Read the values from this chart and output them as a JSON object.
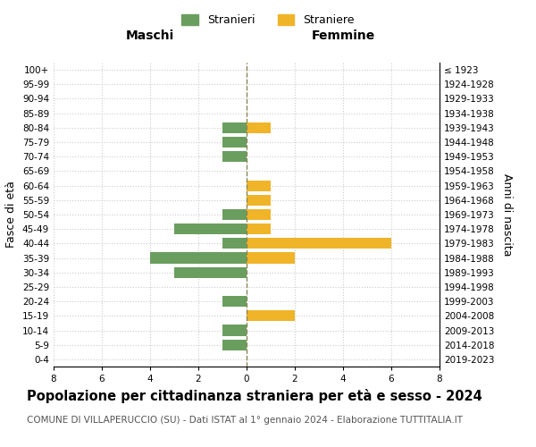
{
  "age_groups": [
    "0-4",
    "5-9",
    "10-14",
    "15-19",
    "20-24",
    "25-29",
    "30-34",
    "35-39",
    "40-44",
    "45-49",
    "50-54",
    "55-59",
    "60-64",
    "65-69",
    "70-74",
    "75-79",
    "80-84",
    "85-89",
    "90-94",
    "95-99",
    "100+"
  ],
  "birth_years": [
    "2019-2023",
    "2014-2018",
    "2009-2013",
    "2004-2008",
    "1999-2003",
    "1994-1998",
    "1989-1993",
    "1984-1988",
    "1979-1983",
    "1974-1978",
    "1969-1973",
    "1964-1968",
    "1959-1963",
    "1954-1958",
    "1949-1953",
    "1944-1948",
    "1939-1943",
    "1934-1938",
    "1929-1933",
    "1924-1928",
    "≤ 1923"
  ],
  "males": [
    0,
    1,
    1,
    0,
    1,
    0,
    3,
    4,
    1,
    3,
    1,
    0,
    0,
    0,
    1,
    1,
    1,
    0,
    0,
    0,
    0
  ],
  "females": [
    0,
    0,
    0,
    2,
    0,
    0,
    0,
    2,
    6,
    1,
    1,
    1,
    1,
    0,
    0,
    0,
    1,
    0,
    0,
    0,
    0
  ],
  "male_color": "#6a9e5e",
  "female_color": "#f0b429",
  "xlim": 8,
  "xlabel_left": "Maschi",
  "xlabel_right": "Femmine",
  "ylabel_left": "Fasce di età",
  "ylabel_right": "Anni di nascita",
  "legend_male": "Stranieri",
  "legend_female": "Straniere",
  "title": "Popolazione per cittadinanza straniera per età e sesso - 2024",
  "subtitle": "COMUNE DI VILLAPERUCCIO (SU) - Dati ISTAT al 1° gennaio 2024 - Elaborazione TUTTITALIA.IT",
  "bg_color": "#ffffff",
  "grid_color": "#cccccc",
  "center_line_color": "#888855",
  "tick_fontsize": 7.5,
  "label_fontsize": 9,
  "title_fontsize": 10.5,
  "subtitle_fontsize": 7.5
}
